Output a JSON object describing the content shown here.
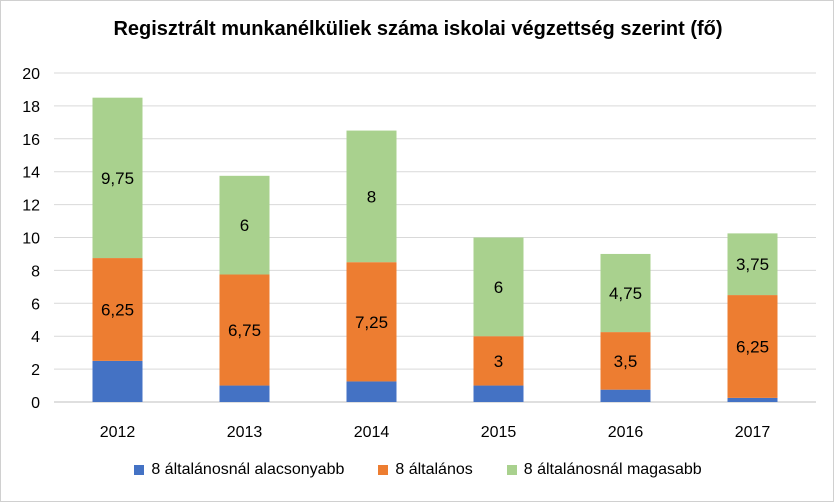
{
  "chart_data": {
    "type": "bar",
    "stacked": true,
    "title": "Regisztrált munkanélküliek száma iskolai végzettség szerint (fő)",
    "xlabel": "",
    "ylabel": "",
    "categories": [
      "2012",
      "2013",
      "2014",
      "2015",
      "2016",
      "2017"
    ],
    "ylim": [
      0,
      20
    ],
    "yticks": [
      "0",
      "2",
      "4",
      "6",
      "8",
      "10",
      "12",
      "14",
      "16",
      "18",
      "20"
    ],
    "grid": true,
    "legend_position": "bottom",
    "series": [
      {
        "name": "8 általánosnál alacsonyabb",
        "color": "#4472c4",
        "values": [
          2.5,
          1,
          1.25,
          1,
          0.75,
          0.25
        ],
        "labels": [
          "",
          "",
          "",
          "",
          "",
          ""
        ]
      },
      {
        "name": "8 általános",
        "color": "#ed7d31",
        "values": [
          6.25,
          6.75,
          7.25,
          3,
          3.5,
          6.25
        ],
        "labels": [
          "6,25",
          "6,75",
          "7,25",
          "3",
          "3,5",
          "6,25"
        ]
      },
      {
        "name": "8 általánosnál magasabb",
        "color": "#a9d18e",
        "values": [
          9.75,
          6,
          8,
          6,
          4.75,
          3.75
        ],
        "labels": [
          "9,75",
          "6",
          "8",
          "6",
          "4,75",
          "3,75"
        ]
      }
    ]
  }
}
